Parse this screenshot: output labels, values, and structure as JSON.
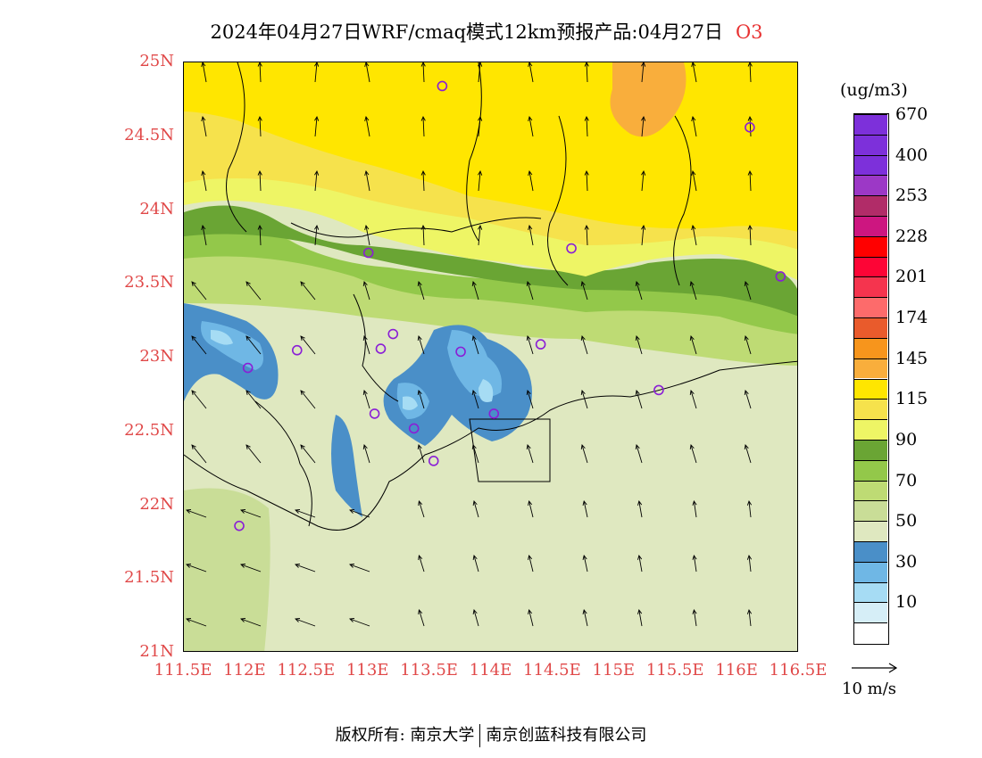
{
  "title": {
    "text": "2024年04月27日WRF/cmaq模式12km预报产品:04月27日",
    "species": "O3"
  },
  "axes": {
    "lat_labels": [
      "25N",
      "24.5N",
      "24N",
      "23.5N",
      "23N",
      "22.5N",
      "22N",
      "21.5N",
      "21N"
    ],
    "lon_labels": [
      "111.5E",
      "112E",
      "112.5E",
      "113E",
      "113.5E",
      "114E",
      "114.5E",
      "115E",
      "115.5E",
      "116E",
      "116.5E"
    ],
    "lat_range": [
      21,
      25
    ],
    "lon_range": [
      111.5,
      116.5
    ],
    "label_color": "#e04848"
  },
  "legend": {
    "unit": "(ug/m3)",
    "levels_bottom_to_top": [
      {
        "color": "#ffffff",
        "label": ""
      },
      {
        "color": "#d6eef7",
        "label": "10"
      },
      {
        "color": "#a6dcf4",
        "label": ""
      },
      {
        "color": "#6fb7e5",
        "label": "30"
      },
      {
        "color": "#4a8fc8",
        "label": ""
      },
      {
        "color": "#dfe8c0",
        "label": "50"
      },
      {
        "color": "#c9dd97",
        "label": ""
      },
      {
        "color": "#bedb74",
        "label": "70"
      },
      {
        "color": "#93c84a",
        "label": ""
      },
      {
        "color": "#6aa534",
        "label": "90"
      },
      {
        "color": "#eef565",
        "label": ""
      },
      {
        "color": "#f6e24c",
        "label": "115"
      },
      {
        "color": "#ffe600",
        "label": ""
      },
      {
        "color": "#f9ae3c",
        "label": "145"
      },
      {
        "color": "#f7951c",
        "label": ""
      },
      {
        "color": "#e95b2c",
        "label": "174"
      },
      {
        "color": "#fd6b6b",
        "label": ""
      },
      {
        "color": "#f5344e",
        "label": "201"
      },
      {
        "color": "#fd0536",
        "label": ""
      },
      {
        "color": "#ff0000",
        "label": "228"
      },
      {
        "color": "#cd1680",
        "label": ""
      },
      {
        "color": "#b12c68",
        "label": "253"
      },
      {
        "color": "#9c38c6",
        "label": ""
      },
      {
        "color": "#7d30da",
        "label": "400"
      },
      {
        "color": "#7d30da",
        "label": ""
      },
      {
        "color": "#7d30da",
        "label": "670"
      }
    ]
  },
  "wind_reference": {
    "label": "10 m/s"
  },
  "stations": [
    {
      "lon": 113.6,
      "lat": 24.84
    },
    {
      "lon": 116.1,
      "lat": 24.56
    },
    {
      "lon": 113.0,
      "lat": 23.71
    },
    {
      "lon": 114.65,
      "lat": 23.74
    },
    {
      "lon": 116.35,
      "lat": 23.55
    },
    {
      "lon": 112.42,
      "lat": 23.05
    },
    {
      "lon": 113.1,
      "lat": 23.06
    },
    {
      "lon": 113.2,
      "lat": 23.16
    },
    {
      "lon": 113.75,
      "lat": 23.04
    },
    {
      "lon": 114.4,
      "lat": 23.09
    },
    {
      "lon": 112.02,
      "lat": 22.93
    },
    {
      "lon": 113.05,
      "lat": 22.62
    },
    {
      "lon": 113.37,
      "lat": 22.52
    },
    {
      "lon": 114.02,
      "lat": 22.62
    },
    {
      "lon": 115.36,
      "lat": 22.78
    },
    {
      "lon": 113.53,
      "lat": 22.3
    },
    {
      "lon": 111.95,
      "lat": 21.86
    }
  ],
  "footer": {
    "left": "版权所有: 南京大学",
    "right": "南京创蓝科技有限公司"
  }
}
